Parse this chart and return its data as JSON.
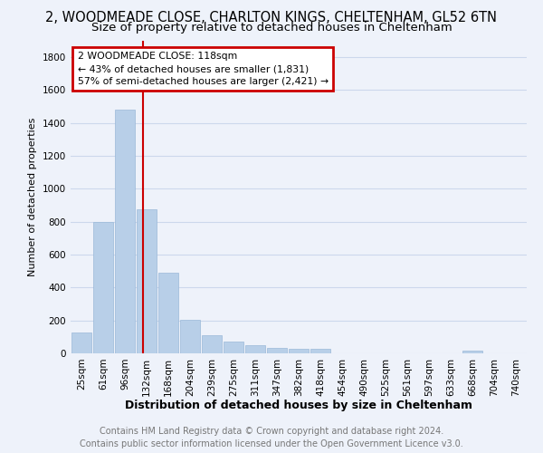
{
  "title": "2, WOODMEADE CLOSE, CHARLTON KINGS, CHELTENHAM, GL52 6TN",
  "subtitle": "Size of property relative to detached houses in Cheltenham",
  "xlabel": "Distribution of detached houses by size in Cheltenham",
  "ylabel": "Number of detached properties",
  "categories": [
    "25sqm",
    "61sqm",
    "96sqm",
    "132sqm",
    "168sqm",
    "204sqm",
    "239sqm",
    "275sqm",
    "311sqm",
    "347sqm",
    "382sqm",
    "418sqm",
    "454sqm",
    "490sqm",
    "525sqm",
    "561sqm",
    "597sqm",
    "633sqm",
    "668sqm",
    "704sqm",
    "740sqm"
  ],
  "values": [
    125,
    800,
    1480,
    875,
    490,
    205,
    110,
    70,
    48,
    35,
    28,
    28,
    0,
    0,
    0,
    0,
    0,
    0,
    15,
    0,
    0
  ],
  "bar_color": "#b8cfe8",
  "bar_edge_color": "#9ab8d8",
  "annotation_line1": "2 WOODMEADE CLOSE: 118sqm",
  "annotation_line2": "← 43% of detached houses are smaller (1,831)",
  "annotation_line3": "57% of semi-detached houses are larger (2,421) →",
  "annotation_box_color": "#cc0000",
  "vline_color": "#cc0000",
  "ylim": [
    0,
    1900
  ],
  "yticks": [
    0,
    200,
    400,
    600,
    800,
    1000,
    1200,
    1400,
    1600,
    1800
  ],
  "grid_color": "#ccd8ec",
  "bg_color": "#eef2fa",
  "footer_line1": "Contains HM Land Registry data © Crown copyright and database right 2024.",
  "footer_line2": "Contains public sector information licensed under the Open Government Licence v3.0.",
  "title_fontsize": 10.5,
  "subtitle_fontsize": 9.5,
  "xlabel_fontsize": 9,
  "ylabel_fontsize": 8,
  "tick_fontsize": 7.5,
  "footer_fontsize": 7,
  "vline_x_index": 2.85
}
